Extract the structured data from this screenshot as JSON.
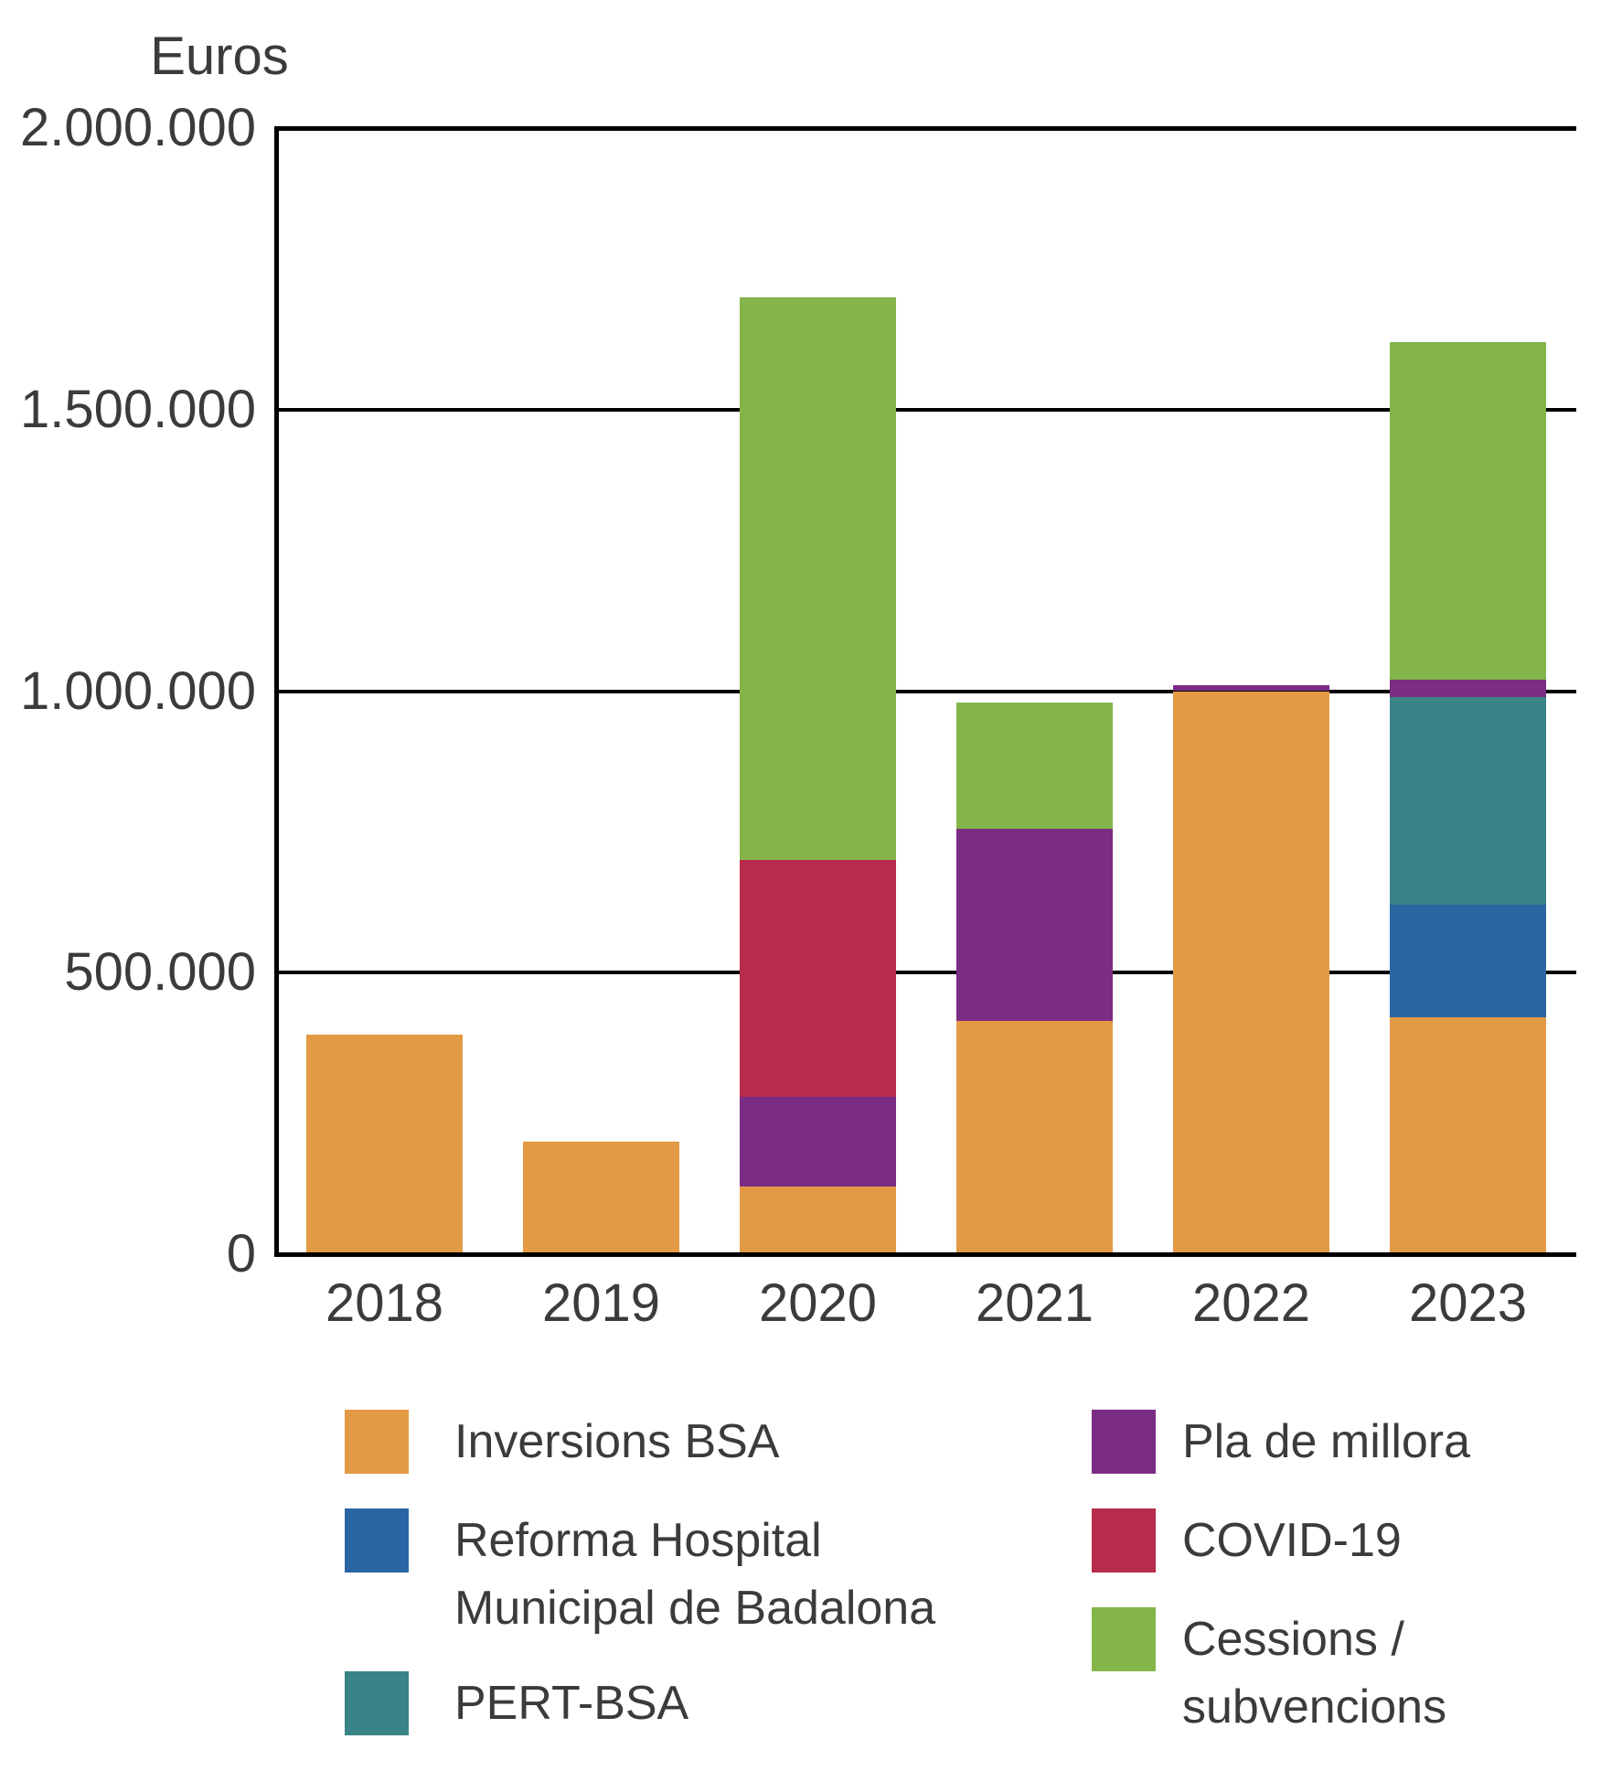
{
  "title": "Euros",
  "colors": {
    "axis": "#000000",
    "text": "#3b3b3b",
    "background": "#ffffff"
  },
  "y_axis": {
    "ticks": [
      {
        "label": "2.000.000",
        "value": 2000000
      },
      {
        "label": "1.500.000",
        "value": 1500000
      },
      {
        "label": "1.000.000",
        "value": 1000000
      },
      {
        "label": "500.000",
        "value": 500000
      },
      {
        "label": "0",
        "value": 0
      }
    ]
  },
  "chart_data": {
    "type": "bar",
    "stacked": true,
    "title": "Euros",
    "ylabel": "Euros",
    "xlabel": "",
    "ylim": [
      0,
      2000000
    ],
    "gridlines": [
      500000,
      1000000,
      1500000
    ],
    "grid": true,
    "legend_position": "bottom",
    "categories": [
      "2018",
      "2019",
      "2020",
      "2021",
      "2022",
      "2023"
    ],
    "series": [
      {
        "name": "Inversions BSA",
        "color": "#E39A45",
        "values": [
          390000,
          200000,
          120000,
          415000,
          1000000,
          420000
        ]
      },
      {
        "name": "Reforma Hospital Municipal de Badalona",
        "color": "#2A66A4",
        "values": [
          0,
          0,
          0,
          0,
          0,
          200000
        ]
      },
      {
        "name": "PERT-BSA",
        "color": "#398486",
        "values": [
          0,
          0,
          0,
          0,
          0,
          370000
        ]
      },
      {
        "name": "Pla de millora",
        "color": "#7B2C83",
        "values": [
          0,
          0,
          160000,
          340000,
          10000,
          30000
        ]
      },
      {
        "name": "COVID-19",
        "color": "#B72C4C",
        "values": [
          0,
          0,
          420000,
          0,
          0,
          0
        ]
      },
      {
        "name": "Cessions / subvencions",
        "color": "#84B54B",
        "values": [
          0,
          0,
          1000000,
          225000,
          0,
          600000
        ]
      }
    ],
    "totals": [
      390000,
      200000,
      1700000,
      980000,
      1010000,
      1620000
    ]
  },
  "legend": {
    "columns": [
      {
        "items": [
          {
            "label": "Inversions BSA",
            "series": 0
          },
          {
            "label": "Reforma Hospital\nMunicipal de Badalona",
            "series": 1
          },
          {
            "label": "PERT-BSA",
            "series": 2
          }
        ]
      },
      {
        "items": [
          {
            "label": "Pla de millora",
            "series": 3
          },
          {
            "label": "COVID-19",
            "series": 4
          },
          {
            "label": "Cessions /\nsubvencions",
            "series": 5
          }
        ]
      }
    ]
  }
}
